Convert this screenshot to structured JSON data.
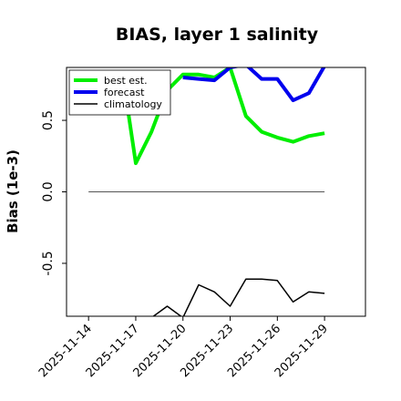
{
  "chart_data": {
    "type": "line",
    "title": "BIAS, layer 1 salinity",
    "xlabel": "",
    "ylabel": "Bias (1e-3)",
    "yticks": [
      -0.5,
      0.0,
      0.5
    ],
    "ytick_labels": [
      "-0.5",
      "0.0",
      "0.5"
    ],
    "ylim": [
      -0.87,
      0.87
    ],
    "x_day_range": [
      -1.4,
      17.6
    ],
    "xticks": [
      {
        "day": 0,
        "label": "2025-11-14",
        "color": "#000000"
      },
      {
        "day": 3,
        "label": "2025-11-17",
        "color": "#000000"
      },
      {
        "day": 6,
        "label": "2025-11-20",
        "color": "#2e7d32"
      },
      {
        "day": 9,
        "label": "2025-11-23",
        "color": "#000000"
      },
      {
        "day": 12,
        "label": "2025-11-26",
        "color": "#000000"
      },
      {
        "day": 15,
        "label": "2025-11-29",
        "color": "#000000"
      }
    ],
    "zero_line": true,
    "legend_position": "top-left",
    "series": [
      {
        "name": "best est.",
        "color": "#00ee00",
        "days": [
          2.3,
          3,
          4,
          5,
          6,
          7,
          8,
          9,
          10,
          11,
          12,
          13,
          14,
          15
        ],
        "values": [
          0.72,
          0.2,
          0.42,
          0.71,
          0.82,
          0.82,
          0.8,
          0.87,
          0.53,
          0.42,
          0.38,
          0.35,
          0.39,
          0.41
        ]
      },
      {
        "name": "forecast",
        "color": "#0000ee",
        "days": [
          6,
          7,
          8,
          9,
          10,
          11,
          12,
          13,
          14,
          15
        ],
        "values": [
          0.8,
          0.79,
          0.78,
          0.87,
          0.89,
          0.79,
          0.79,
          0.64,
          0.69,
          0.88
        ]
      },
      {
        "name": "climatology",
        "color": "#000000",
        "days": [
          0,
          2,
          4,
          5,
          6,
          7,
          8,
          9,
          10,
          11,
          12,
          13,
          14,
          15
        ],
        "values": [
          -0.9,
          -0.9,
          -0.88,
          -0.8,
          -0.88,
          -0.65,
          -0.7,
          -0.8,
          -0.61,
          -0.61,
          -0.62,
          -0.77,
          -0.7,
          -0.71
        ]
      }
    ]
  }
}
